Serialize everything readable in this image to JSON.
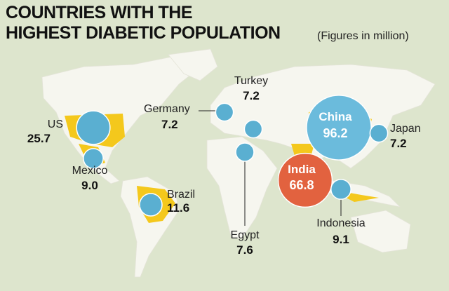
{
  "chart_data": {
    "type": "bubble_map",
    "title": [
      "COUNTRIES WITH THE",
      "HIGHEST DIABETIC POPULATION"
    ],
    "subtitle": "(Figures in million)",
    "categories": [
      "US",
      "Mexico",
      "Brazil",
      "Germany",
      "Turkey",
      "Egypt",
      "China",
      "India",
      "Japan",
      "Indonesia"
    ],
    "values": [
      25.7,
      9.0,
      11.6,
      7.2,
      7.2,
      7.6,
      96.2,
      66.8,
      7.2,
      9.1
    ],
    "value_labels": [
      "25.7",
      "9.0",
      "11.6",
      "7.2",
      "7.2",
      "7.6",
      "96.2",
      "66.8",
      "7.2",
      "9.1"
    ],
    "colors": [
      "#5aafd1",
      "#5aafd1",
      "#5aafd1",
      "#5aafd1",
      "#5aafd1",
      "#5aafd1",
      "#6bbbdc",
      "#e2623f",
      "#5aafd1",
      "#5aafd1"
    ]
  }
}
